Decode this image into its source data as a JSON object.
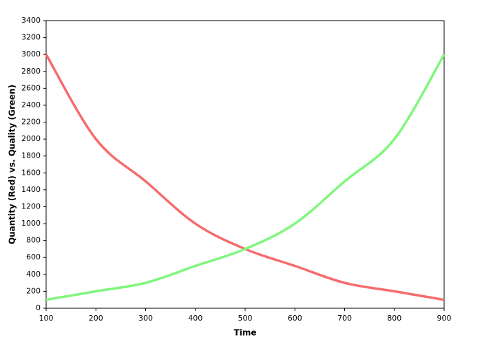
{
  "chart_data": {
    "type": "line",
    "xlabel": "Time",
    "ylabel": "Quantity (Red) vs. Quality (Green)",
    "x": [
      100,
      200,
      300,
      400,
      500,
      600,
      700,
      800,
      900
    ],
    "series": [
      {
        "color": "#f76b6b",
        "values": [
          3000,
          2000,
          1500,
          1000,
          700,
          500,
          300,
          200,
          100
        ]
      },
      {
        "color": "#7ef77b",
        "values": [
          100,
          200,
          300,
          500,
          700,
          1000,
          1500,
          2000,
          3000
        ]
      }
    ],
    "xlim": [
      100,
      900
    ],
    "xticks": [
      100,
      200,
      300,
      400,
      500,
      600,
      700,
      800,
      900
    ],
    "ylim": [
      0,
      3400
    ],
    "yticks": [
      0,
      200,
      400,
      600,
      800,
      1000,
      1200,
      1400,
      1600,
      1800,
      2000,
      2200,
      2400,
      2600,
      2800,
      3000,
      3200,
      3400
    ]
  }
}
